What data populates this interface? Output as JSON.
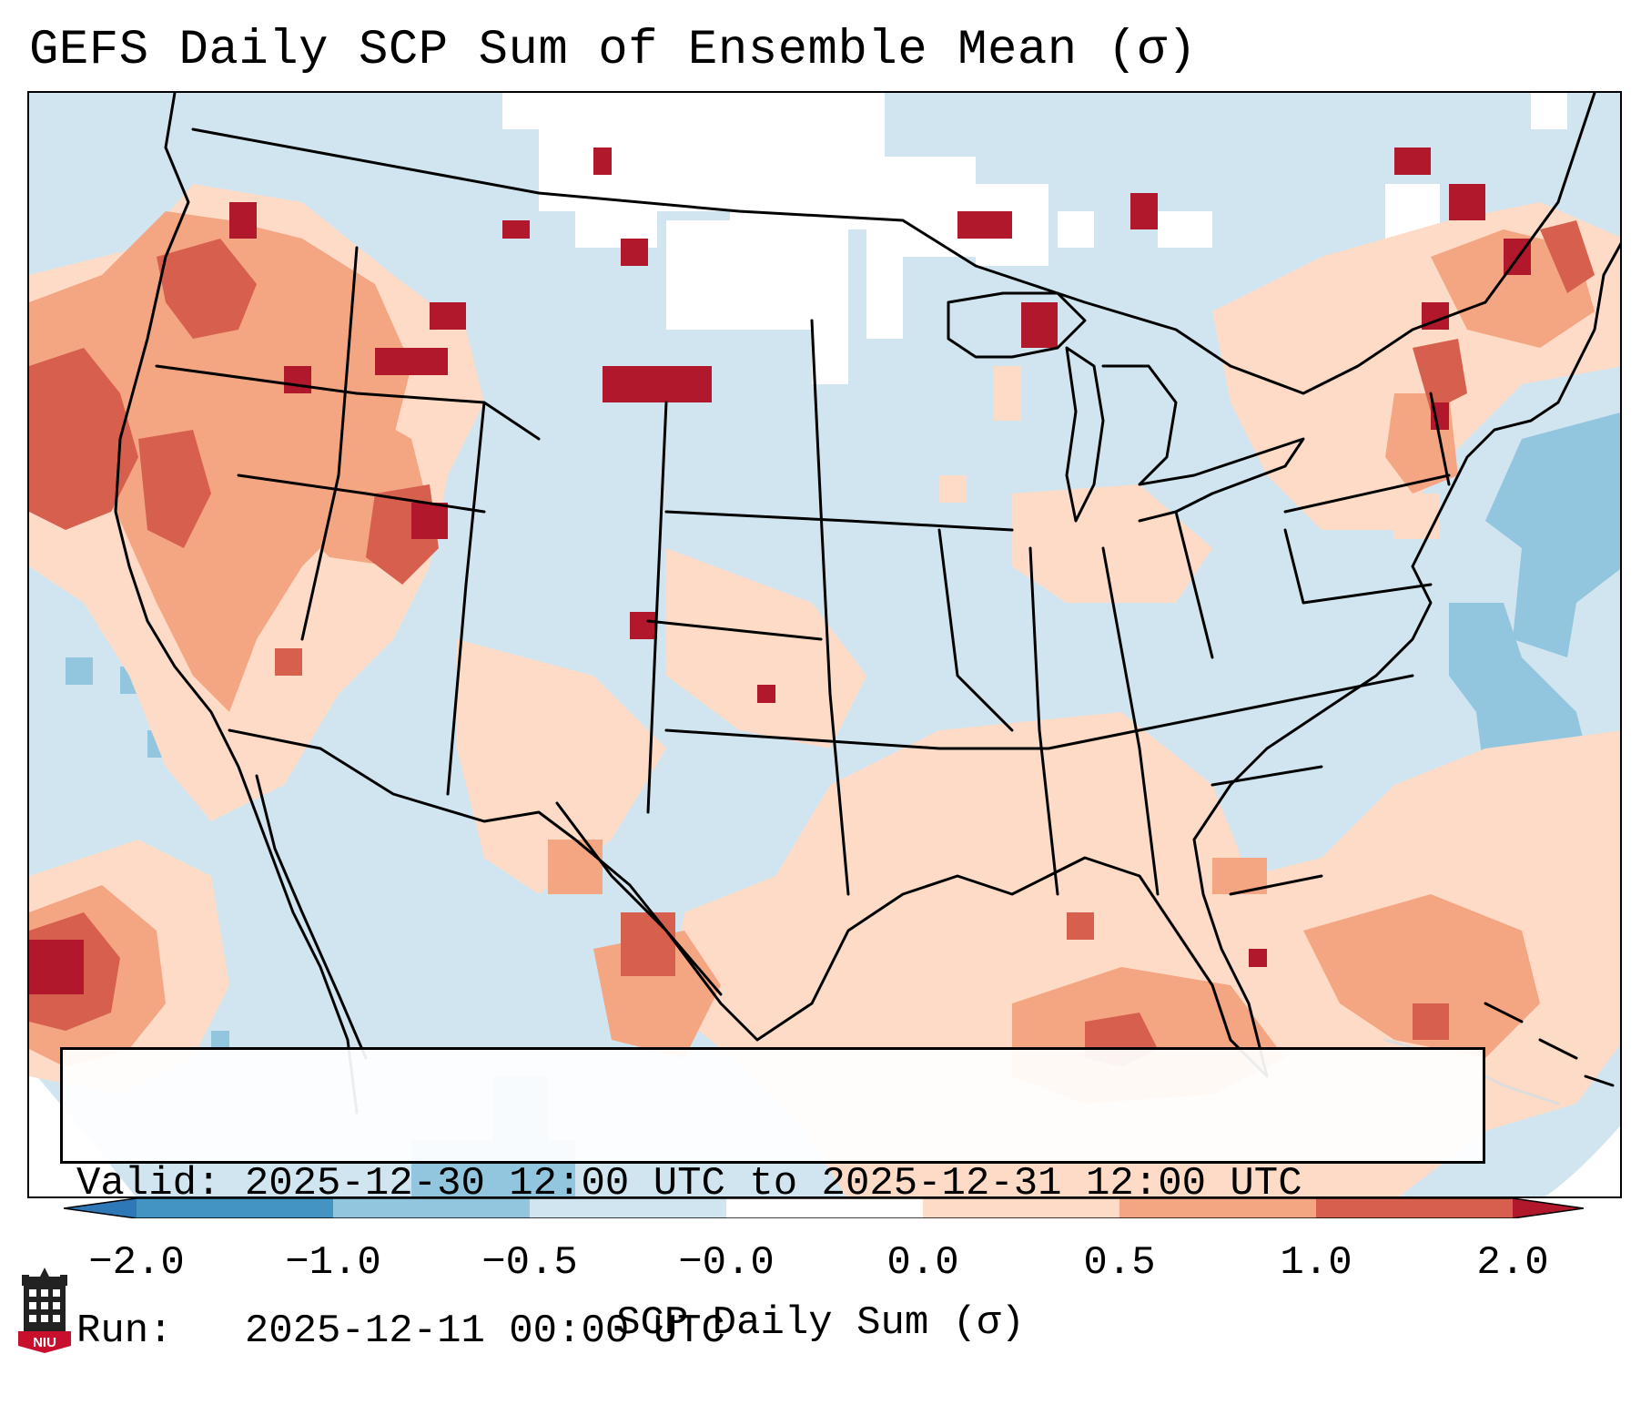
{
  "title": "GEFS Daily SCP Sum of Ensemble Mean (σ)",
  "info": {
    "valid_line": "Valid: 2025-12-30 12:00 UTC to 2025-12-31 12:00 UTC",
    "run_line": "Run:   2025-12-11 00:00 UTC"
  },
  "colorbar": {
    "label": "SCP Daily Sum (σ)",
    "ticks": [
      "−2.0",
      "−1.0",
      "−0.5",
      "−0.0",
      "0.0",
      "0.5",
      "1.0",
      "2.0"
    ],
    "bins": [
      {
        "range": "< -2.0",
        "color": "#2f78b8"
      },
      {
        "range": "-2.0 to -1.0",
        "color": "#4393c3"
      },
      {
        "range": "-1.0 to -0.5",
        "color": "#92c5de"
      },
      {
        "range": "-0.5 to -0.0",
        "color": "#d1e5f0"
      },
      {
        "range": "-0.0 to 0.0",
        "color": "#ffffff"
      },
      {
        "range": "0.0 to 0.5",
        "color": "#fddbc7"
      },
      {
        "range": "0.5 to 1.0",
        "color": "#f4a582"
      },
      {
        "range": "1.0 to 2.0",
        "color": "#d6604d"
      },
      {
        "range": "> 2.0",
        "color": "#b2182b"
      }
    ]
  },
  "logo": {
    "text": "NIU",
    "icon": "niu-tower-logo-icon"
  },
  "colors": {
    "land": "#d1e5f0",
    "background": "#ffffff",
    "outline": "#000000"
  }
}
